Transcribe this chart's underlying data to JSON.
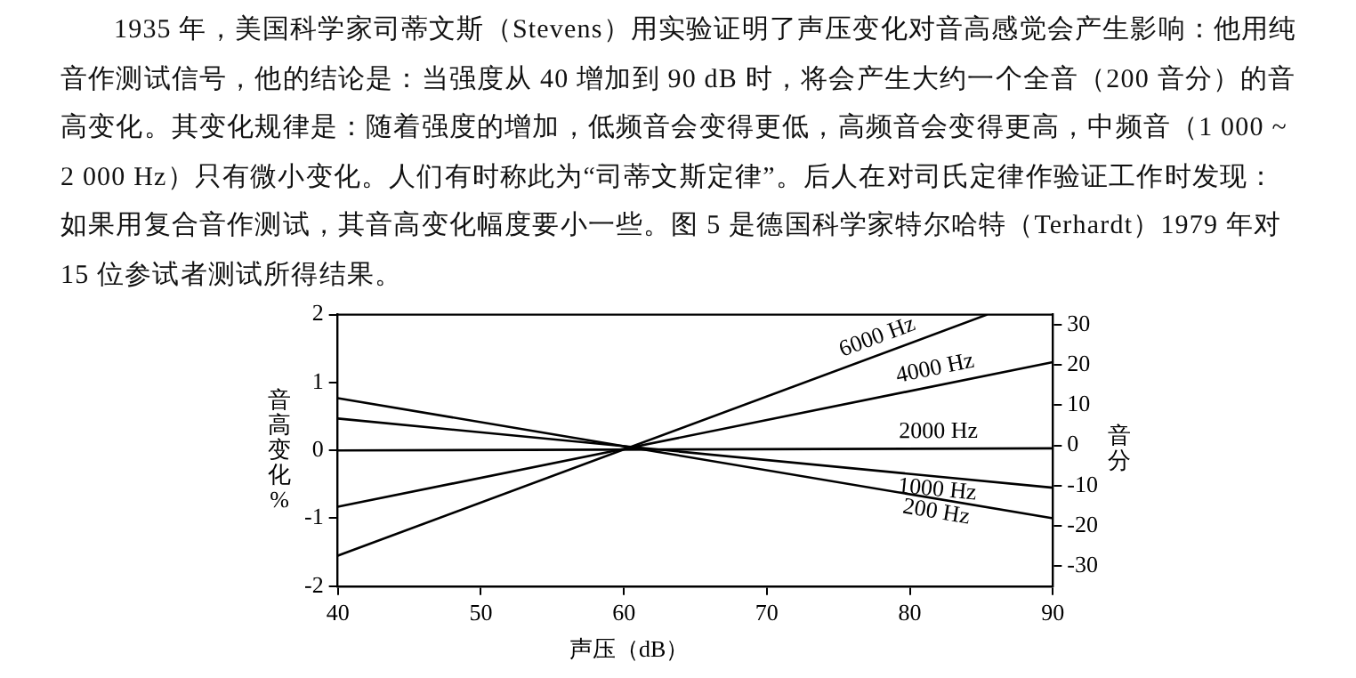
{
  "chart_data": {
    "type": "line",
    "annotations": [
      "1935 年，美国科学家司蒂文斯（Stevens）用实验证明了声压变化对音高感觉会产生影响：他用纯音作测试信号，他的结论是：当强度从 40 增加到 90 dB 时，将会产生大约一个全音（200 音分）的音高变化。其变化规律是：随着强度的增加，低频音会变得更低，高频音会变得更高，中频音（1 000 ~ 2 000 Hz）只有微小变化。人们有时称此为“司蒂文斯定律”。后人在对司氏定律作验证工作时发现：如果用复合音作测试，其音高变化幅度要小一些。图 5 是德国科学家特尔哈特（Terhardt）1979 年对 15 位参试者测试所得结果。"
    ],
    "xlabel": "声压（dB）",
    "ylabel": "音高变化%",
    "y2label": "音分",
    "xlim": [
      40,
      90
    ],
    "xticks": [
      40,
      50,
      60,
      70,
      80,
      90
    ],
    "ylim": [
      -2,
      2
    ],
    "yticks": [
      -2,
      -1,
      0,
      1,
      2
    ],
    "y2lim": [
      -35,
      32.5
    ],
    "y2ticks": [
      -30,
      -20,
      -10,
      0,
      10,
      20,
      30
    ],
    "grid": false,
    "legend": false,
    "marker": "none",
    "line_style": "solid",
    "series": [
      {
        "name": "6000 Hz",
        "color": "#000000",
        "x": [
          40,
          85.4
        ],
        "values": [
          -1.55,
          2
        ]
      },
      {
        "name": "4000 Hz",
        "color": "#000000",
        "x": [
          40,
          90
        ],
        "values": [
          -0.83,
          1.3
        ]
      },
      {
        "name": "2000 Hz",
        "color": "#000000",
        "x": [
          40,
          90
        ],
        "values": [
          0,
          0.03
        ]
      },
      {
        "name": "1000 Hz",
        "color": "#000000",
        "x": [
          40,
          90
        ],
        "values": [
          0.47,
          -0.55
        ]
      },
      {
        "name": "200 Hz",
        "color": "#000000",
        "x": [
          40,
          90
        ],
        "values": [
          0.77,
          -1.0
        ]
      }
    ]
  }
}
